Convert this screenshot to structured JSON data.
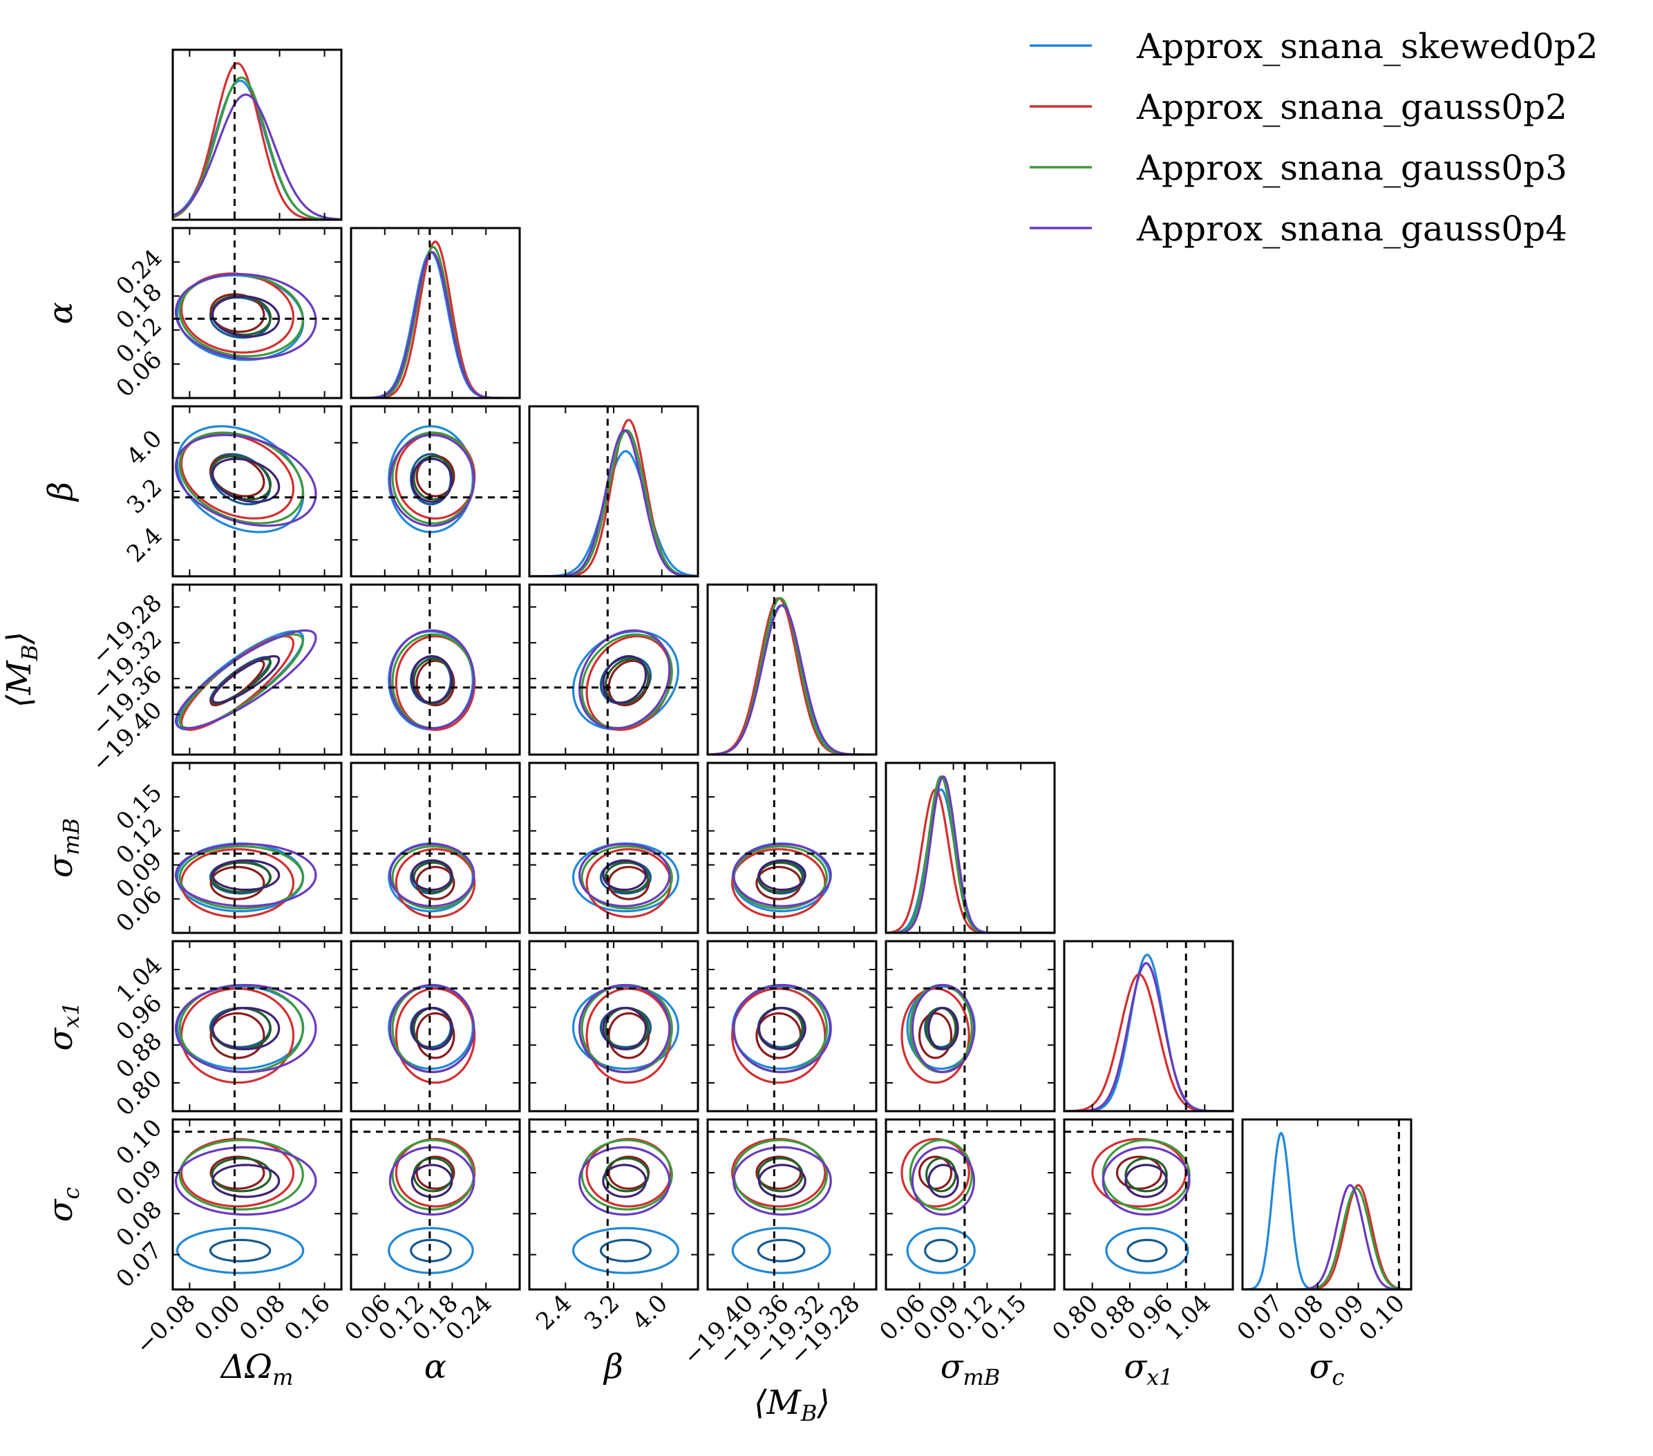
{
  "chart_data": {
    "type": "corner",
    "parameters": [
      {
        "key": "dom",
        "label": "ΔΩ",
        "sub": "m",
        "range": [
          -0.11,
          0.19
        ],
        "ticks": [
          -0.08,
          0.0,
          0.08,
          0.16
        ],
        "tick_labels": [
          "−0.08",
          "0.00",
          "0.08",
          "0.16"
        ],
        "truth": 0.0
      },
      {
        "key": "alpha",
        "label": "α",
        "sub": "",
        "range": [
          0.0,
          0.3
        ],
        "ticks": [
          0.06,
          0.12,
          0.18,
          0.24
        ],
        "tick_labels": [
          "0.06",
          "0.12",
          "0.18",
          "0.24"
        ],
        "truth": 0.14
      },
      {
        "key": "beta",
        "label": "β",
        "sub": "",
        "range": [
          1.8,
          4.6
        ],
        "ticks": [
          2.4,
          3.2,
          4.0
        ],
        "tick_labels": [
          "2.4",
          "3.2",
          "4.0"
        ],
        "truth": 3.1
      },
      {
        "key": "mb",
        "label": "⟨M",
        "sub": "B",
        "suffix": "⟩",
        "range": [
          -19.445,
          -19.255
        ],
        "ticks": [
          -19.4,
          -19.36,
          -19.32,
          -19.28
        ],
        "tick_labels": [
          "−19.40",
          "−19.36",
          "−19.32",
          "−19.28"
        ],
        "truth": -19.37
      },
      {
        "key": "smb",
        "label": "σ",
        "sub": "mB",
        "range": [
          0.03,
          0.18
        ],
        "ticks": [
          0.06,
          0.09,
          0.12,
          0.15
        ],
        "tick_labels": [
          "0.06",
          "0.09",
          "0.12",
          "0.15"
        ],
        "truth": 0.1
      },
      {
        "key": "sx1",
        "label": "σ",
        "sub": "x1",
        "range": [
          0.74,
          1.1
        ],
        "ticks": [
          0.8,
          0.88,
          0.96,
          1.04
        ],
        "tick_labels": [
          "0.80",
          "0.88",
          "0.96",
          "1.04"
        ],
        "truth": 1.0
      },
      {
        "key": "sc",
        "label": "σ",
        "sub": "c",
        "range": [
          0.0615,
          0.103
        ],
        "ticks": [
          0.07,
          0.08,
          0.09,
          0.1
        ],
        "tick_labels": [
          "0.07",
          "0.08",
          "0.09",
          "0.10"
        ],
        "truth": 0.1
      }
    ],
    "series": [
      {
        "name": "Approx_snana_skewed0p2",
        "color": "#1f88d8",
        "dark": "#155a8e",
        "mean": [
          0.01,
          0.142,
          3.4,
          -19.362,
          0.079,
          0.917,
          0.071
        ],
        "sd": [
          0.045,
          0.03,
          0.35,
          0.022,
          0.012,
          0.035,
          0.0022
        ],
        "rho": {
          "0-1": -0.1,
          "0-2": -0.3,
          "0-3": 0.85,
          "1-3": 0.0,
          "2-3": 0.2
        }
      },
      {
        "name": "Approx_snana_gauss0p2",
        "color": "#d32f2f",
        "dark": "#8a1d1d",
        "mean": [
          0.005,
          0.15,
          3.45,
          -19.365,
          0.074,
          0.9,
          0.09
        ],
        "sd": [
          0.04,
          0.028,
          0.28,
          0.021,
          0.012,
          0.04,
          0.0033
        ],
        "rho": {
          "0-1": -0.1,
          "0-2": -0.3,
          "0-3": 0.85,
          "1-3": 0.0,
          "2-3": 0.2
        }
      },
      {
        "name": "Approx_snana_gauss0p3",
        "color": "#3c9a3c",
        "dark": "#22612a",
        "mean": [
          0.012,
          0.146,
          3.42,
          -19.363,
          0.079,
          0.915,
          0.0895
        ],
        "sd": [
          0.044,
          0.029,
          0.3,
          0.021,
          0.011,
          0.037,
          0.0034
        ],
        "rho": {
          "0-1": -0.1,
          "0-2": -0.3,
          "0-3": 0.85,
          "1-3": 0.0,
          "2-3": 0.2
        }
      },
      {
        "name": "Approx_snana_gauss0p4",
        "color": "#6a3bbf",
        "dark": "#3f2173",
        "mean": [
          0.02,
          0.144,
          3.38,
          -19.361,
          0.081,
          0.915,
          0.088
        ],
        "sd": [
          0.05,
          0.03,
          0.3,
          0.022,
          0.011,
          0.037,
          0.0033
        ],
        "rho": {
          "0-1": -0.1,
          "0-2": -0.3,
          "0-3": 0.85,
          "1-3": 0.0,
          "2-3": 0.2
        }
      }
    ],
    "grid": false,
    "legend": "top-right"
  }
}
